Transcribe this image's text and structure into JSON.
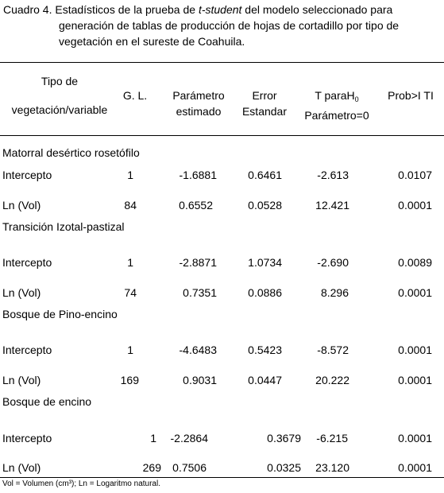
{
  "caption": {
    "prefix": "Cuadro 4. Estadísticos de la prueba de ",
    "italic": "t-student",
    "suffix": " del modelo seleccionado para",
    "line2": "generación de tablas de producción de hojas de cortadillo por tipo de",
    "line3": "vegetación en el sureste de Coahuila."
  },
  "headers": {
    "tipo_line1": "Tipo de",
    "tipo_line2": "vegetación/variable",
    "gl": "G. L.",
    "param_line1": "Parámetro",
    "param_line2": "estimado",
    "error_line1": "Error",
    "error_line2": "Estandar",
    "t_line1_main": "T paraH",
    "t_line1_sub": "0",
    "t_line2": "Parámetro=0",
    "prob": "Prob>I TI"
  },
  "groups": [
    {
      "name": "Matorral desértico rosetófilo",
      "rows": [
        {
          "variable": "Intercepto",
          "gl": "1",
          "param": "-1.6881",
          "error": "0.6461",
          "t": "-2.613",
          "prob": "0.0107"
        },
        {
          "variable": "Ln (Vol)",
          "gl": "84",
          "param": "0.6552",
          "error": "0.0528",
          "t": "12.421",
          "prob": "0.0001"
        }
      ]
    },
    {
      "name": "Transición Izotal-pastizal",
      "rows": [
        {
          "variable": "Intercepto",
          "gl": "1",
          "param": "-2.8871",
          "error": "1.0734",
          "t": "-2.690",
          "prob": "0.0089"
        },
        {
          "variable": "Ln (Vol)",
          "gl": "74",
          "param": "0.7351",
          "error": "0.0886",
          "t": "8.296",
          "prob": "0.0001"
        }
      ]
    },
    {
      "name": "Bosque de Pino-encino",
      "rows": [
        {
          "variable": "Intercepto",
          "gl": "1",
          "param": "-4.6483",
          "error": "0.5423",
          "t": "-8.572",
          "prob": "0.0001"
        },
        {
          "variable": "Ln (Vol)",
          "gl": "169",
          "param": "0.9031",
          "error": "0.0447",
          "t": "20.222",
          "prob": "0.0001"
        }
      ]
    },
    {
      "name": "Bosque de encino",
      "rows": [
        {
          "variable": "Intercepto",
          "gl": "1",
          "param": "-2.2864",
          "error": "0.3679",
          "t": "-6.215",
          "prob": "0.0001"
        },
        {
          "variable": "Ln (Vol)",
          "gl": "269",
          "param": "0.7506",
          "error": "0.0325",
          "t": "23.120",
          "prob": "0.0001"
        }
      ]
    }
  ],
  "footnote": "Vol = Volumen (cm³); Ln = Logaritmo natural."
}
